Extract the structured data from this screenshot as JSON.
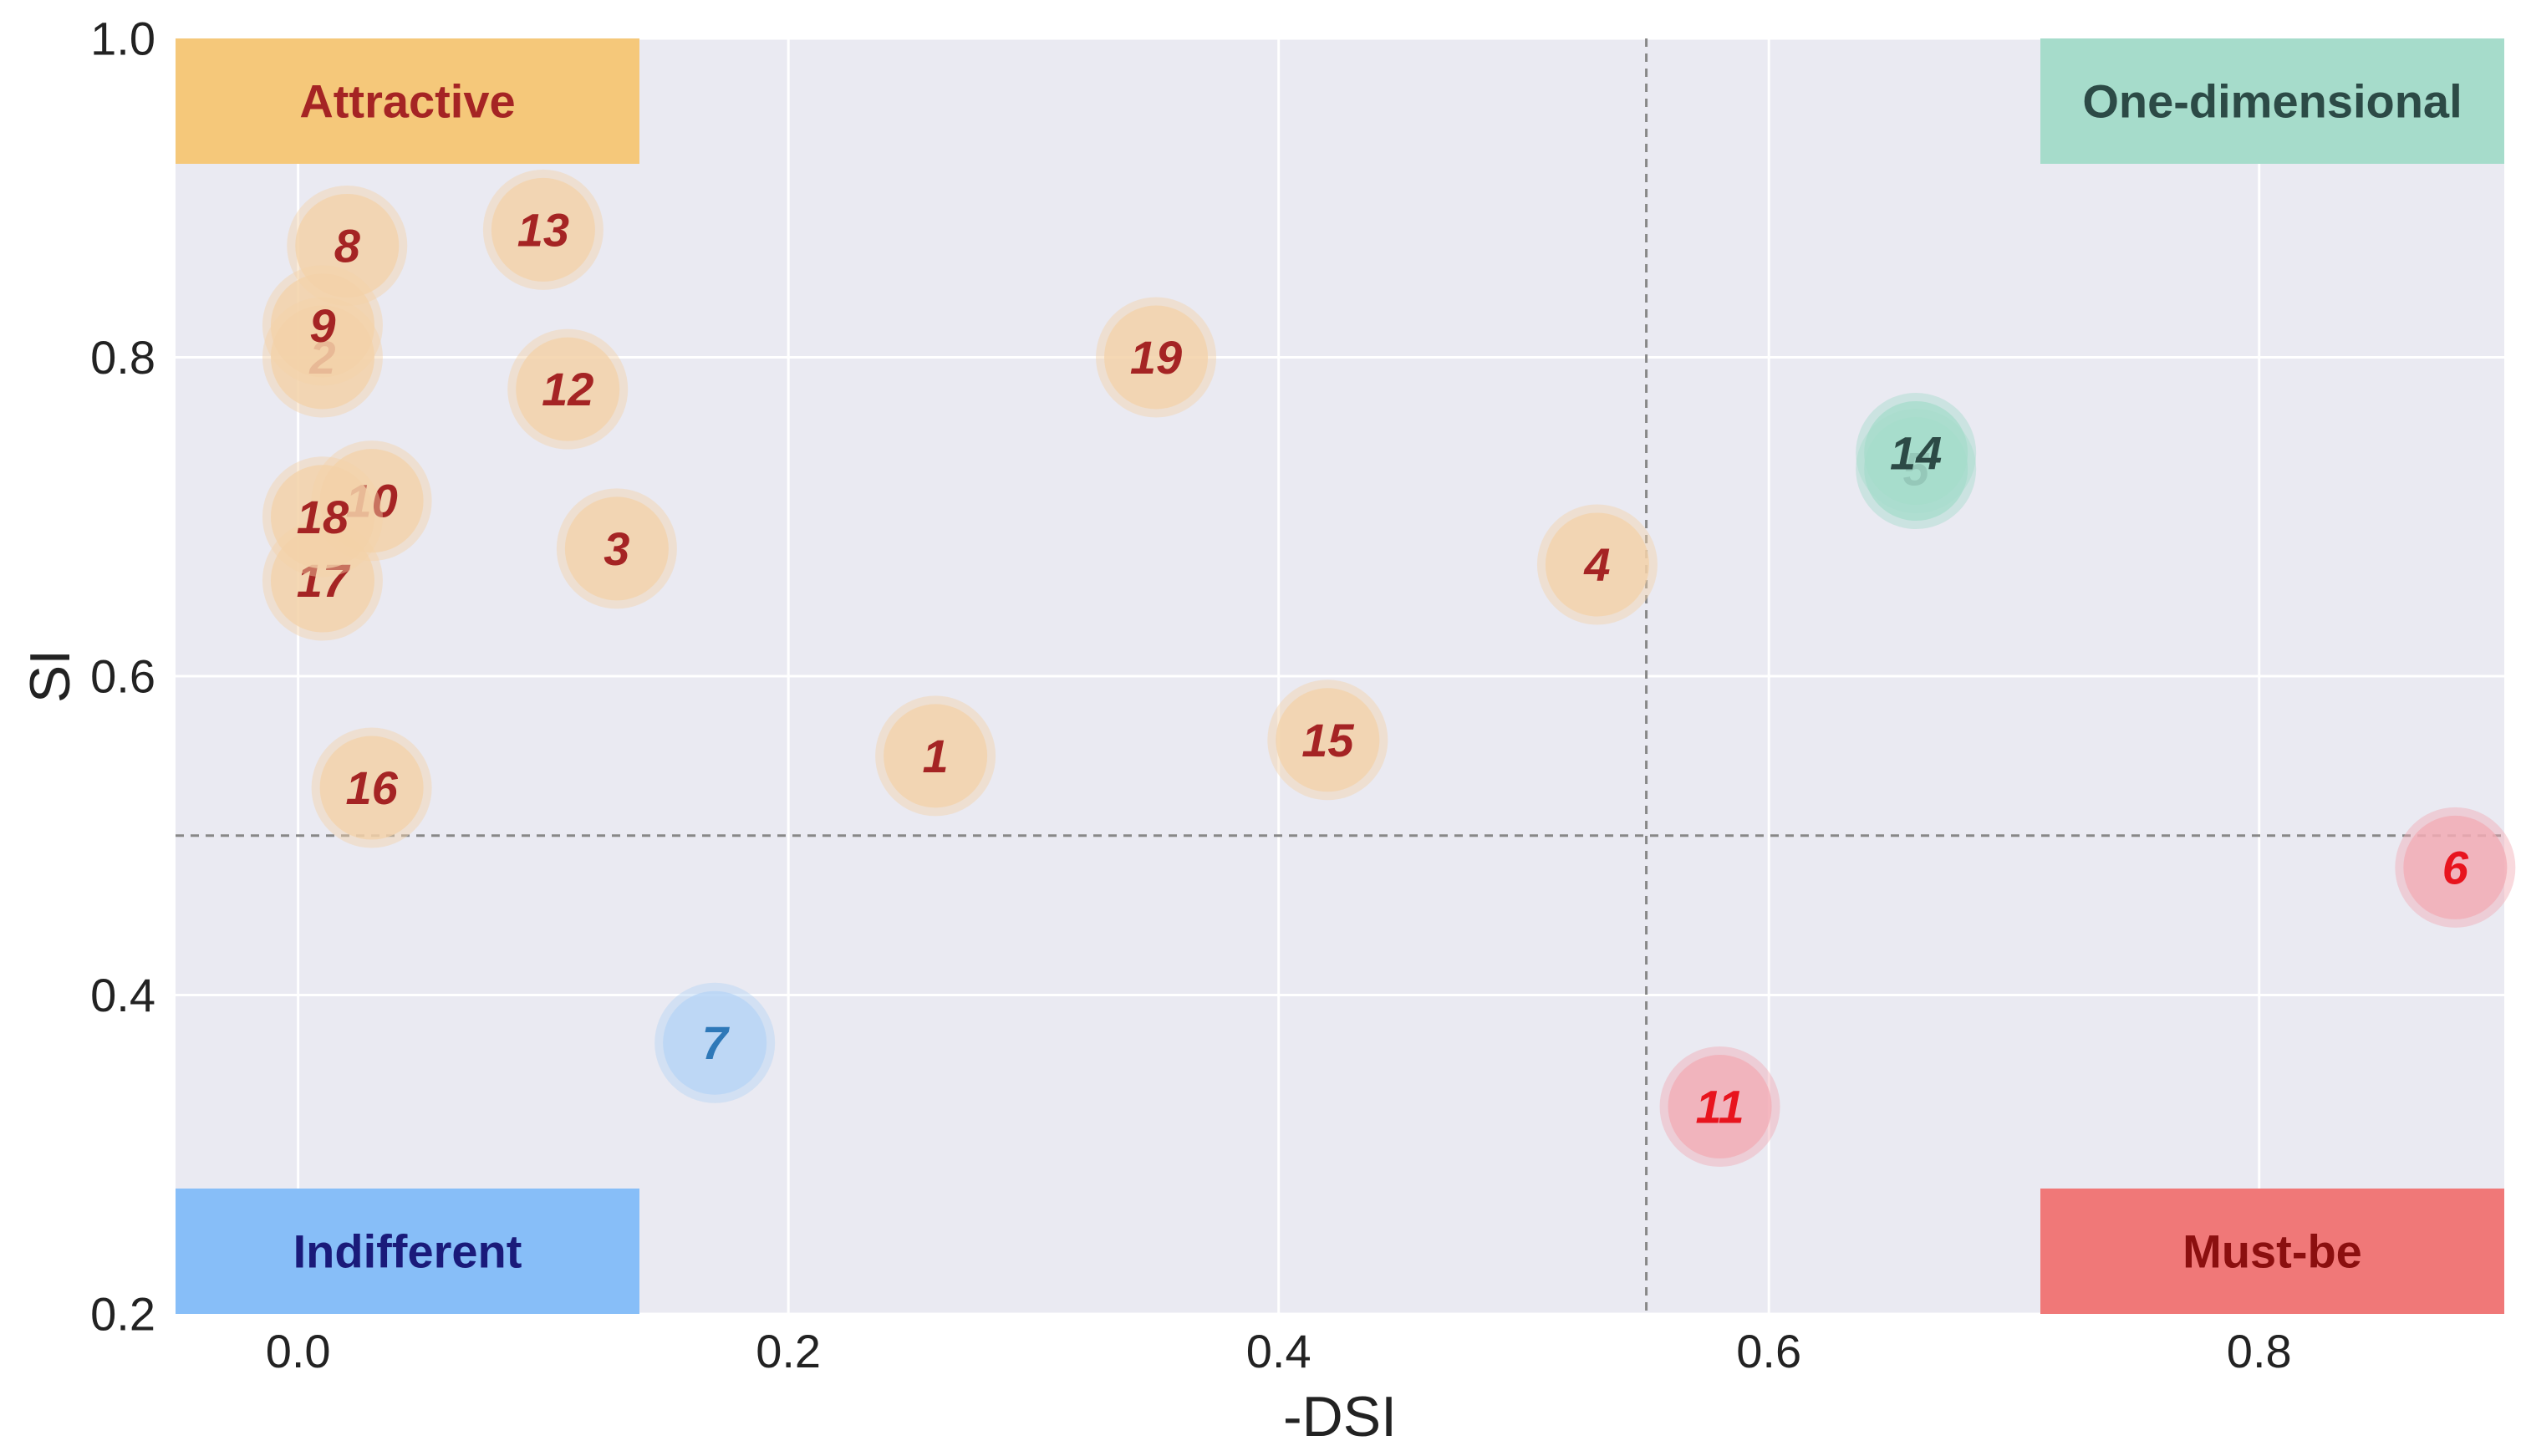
{
  "chart_data": {
    "type": "scatter",
    "title": "",
    "xlabel": "-DSI",
    "ylabel": "SI",
    "xlim": [
      -0.05,
      0.9
    ],
    "ylim": [
      0.2,
      1.0
    ],
    "xticks": [
      "0.0",
      "0.2",
      "0.4",
      "0.6",
      "0.8"
    ],
    "xtick_values": [
      0.0,
      0.2,
      0.4,
      0.6,
      0.8
    ],
    "yticks": [
      "0.2",
      "0.4",
      "0.6",
      "0.8",
      "1.0"
    ],
    "ytick_values": [
      0.2,
      0.4,
      0.6,
      0.8,
      1.0
    ],
    "grid": true,
    "thresholds": {
      "x": 0.55,
      "y": 0.5
    },
    "categories": {
      "attractive": {
        "label": "Attractive",
        "box_color": "#F5C87A",
        "text_color": "#A52424",
        "point_color": "#F3D2A8"
      },
      "one_dimensional": {
        "label": "One-dimensional",
        "box_color": "#A6DCCB",
        "text_color": "#2C4A46",
        "point_color": "#A6DCCB"
      },
      "indifferent": {
        "label": "Indifferent",
        "box_color": "#87BEF8",
        "text_color": "#1A1A7A",
        "point_color": "#B6D4F5"
      },
      "must_be": {
        "label": "Must-be",
        "box_color": "#F07878",
        "text_color": "#8B0F0F",
        "point_color": "#F2ABB4"
      }
    },
    "points": [
      {
        "label": "1",
        "x": 0.26,
        "y": 0.55,
        "category": "attractive"
      },
      {
        "label": "2",
        "x": 0.01,
        "y": 0.8,
        "category": "attractive"
      },
      {
        "label": "3",
        "x": 0.13,
        "y": 0.68,
        "category": "attractive"
      },
      {
        "label": "4",
        "x": 0.53,
        "y": 0.67,
        "category": "attractive"
      },
      {
        "label": "5",
        "x": 0.66,
        "y": 0.73,
        "category": "one_dimensional"
      },
      {
        "label": "6",
        "x": 0.88,
        "y": 0.48,
        "category": "must_be",
        "label_color": "#E8141E"
      },
      {
        "label": "7",
        "x": 0.17,
        "y": 0.37,
        "category": "indifferent",
        "label_color": "#2E78B8"
      },
      {
        "label": "8",
        "x": 0.02,
        "y": 0.87,
        "category": "attractive"
      },
      {
        "label": "9",
        "x": 0.01,
        "y": 0.82,
        "category": "attractive"
      },
      {
        "label": "10",
        "x": 0.03,
        "y": 0.71,
        "category": "attractive"
      },
      {
        "label": "11",
        "x": 0.58,
        "y": 0.33,
        "category": "must_be",
        "label_color": "#E8141E"
      },
      {
        "label": "12",
        "x": 0.11,
        "y": 0.78,
        "category": "attractive"
      },
      {
        "label": "13",
        "x": 0.1,
        "y": 0.88,
        "category": "attractive"
      },
      {
        "label": "14",
        "x": 0.66,
        "y": 0.74,
        "category": "one_dimensional"
      },
      {
        "label": "15",
        "x": 0.42,
        "y": 0.56,
        "category": "attractive"
      },
      {
        "label": "16",
        "x": 0.03,
        "y": 0.53,
        "category": "attractive"
      },
      {
        "label": "17",
        "x": 0.01,
        "y": 0.66,
        "category": "attractive"
      },
      {
        "label": "18",
        "x": 0.01,
        "y": 0.7,
        "category": "attractive"
      },
      {
        "label": "19",
        "x": 0.35,
        "y": 0.8,
        "category": "attractive"
      }
    ],
    "colors": {
      "plot_background": "#EAEAF2",
      "grid": "#FFFFFF",
      "threshold_line": "#888888"
    }
  }
}
